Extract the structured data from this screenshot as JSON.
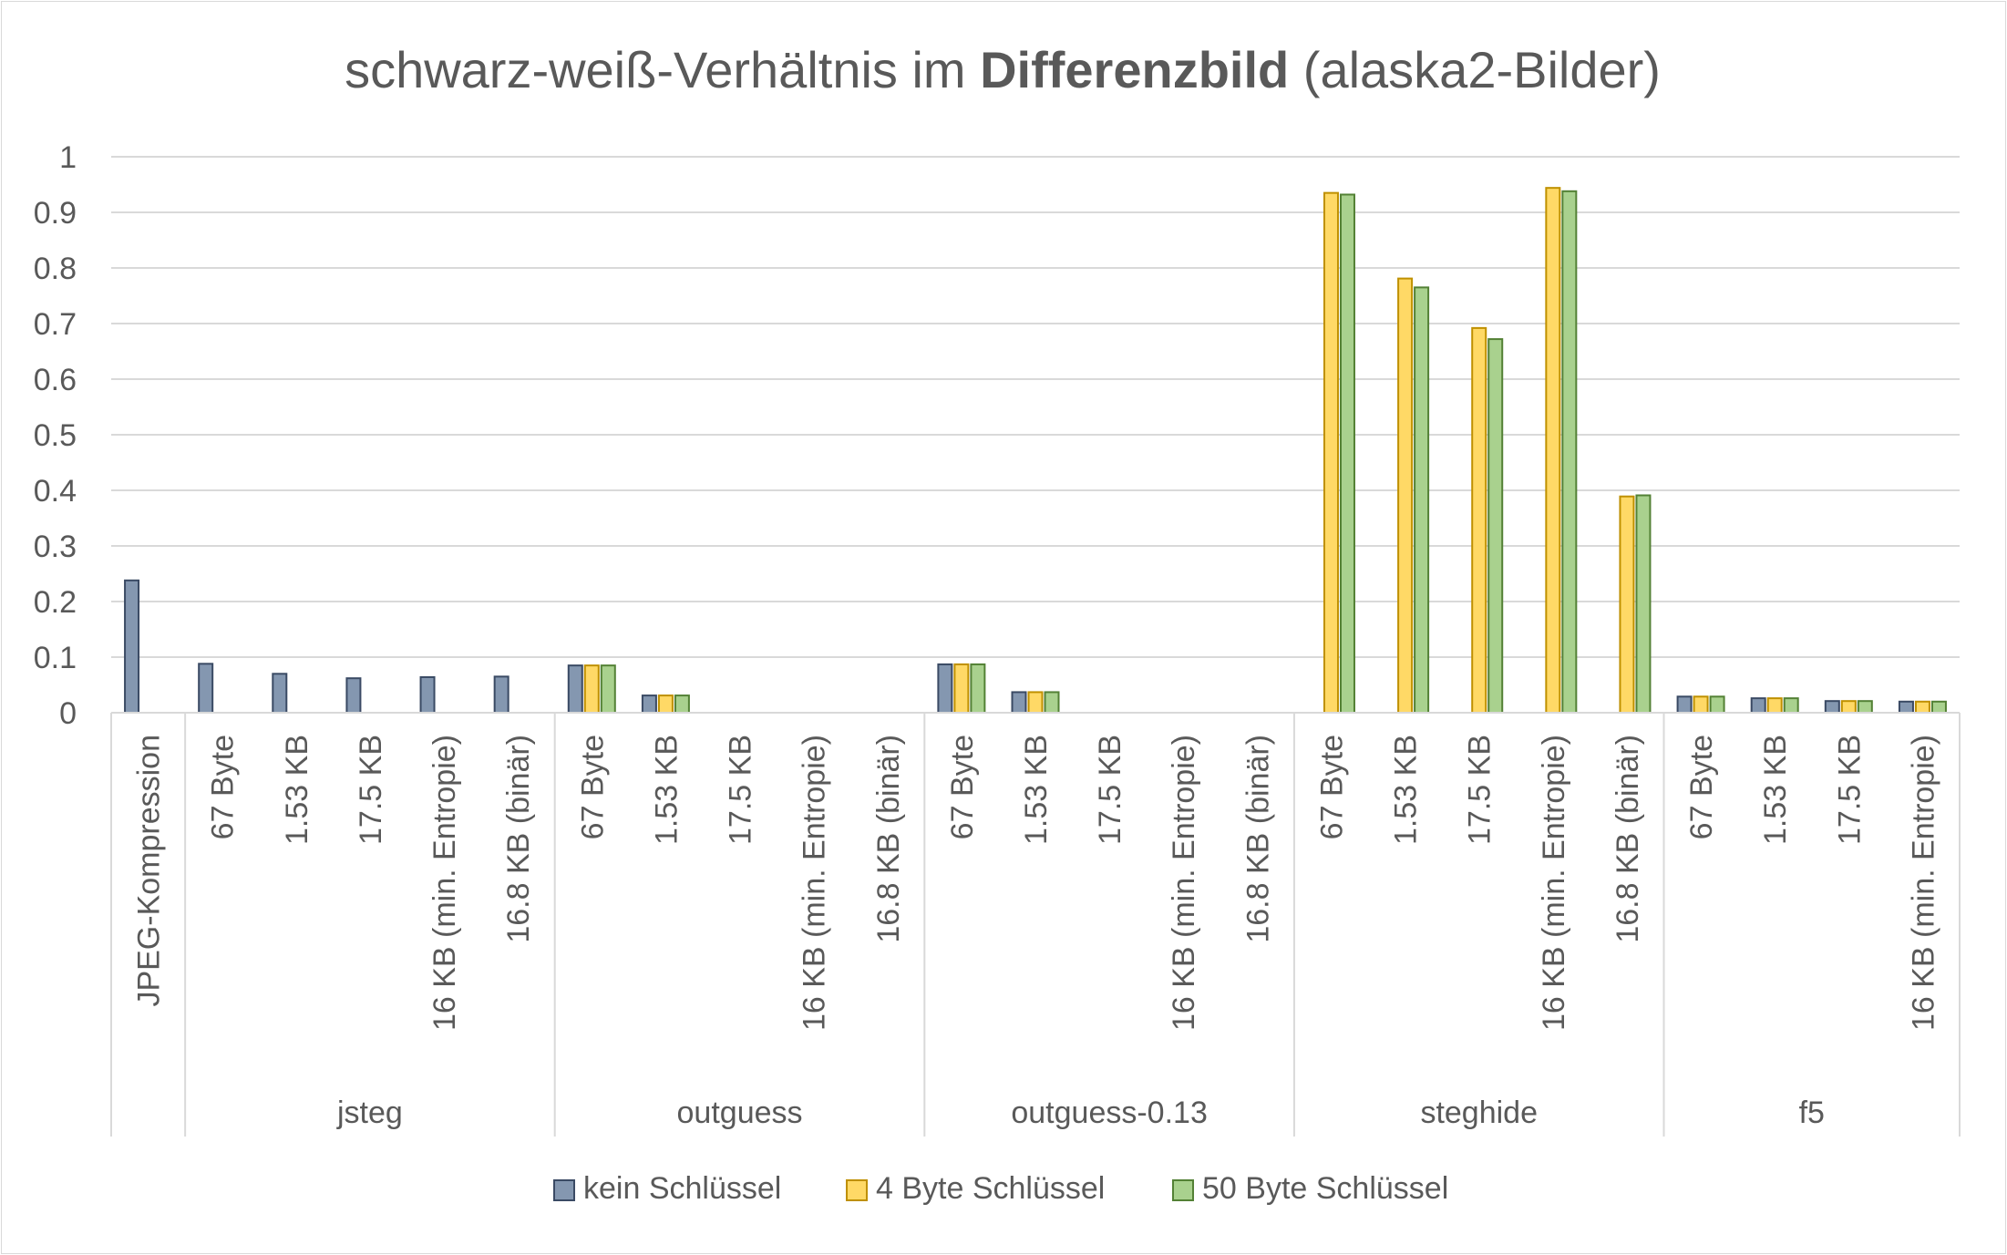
{
  "chart_data": {
    "type": "bar",
    "title": "schwarz-weiß-Verhältnis im Differenzbild (alaska2-Bilder)",
    "title_parts": {
      "prefix": "schwarz-weiß-Verhältnis im ",
      "bold": "Differenzbild",
      "suffix": " (alaska2-Bilder)"
    },
    "xlabel": "",
    "ylabel": "",
    "ylim": [
      0,
      1
    ],
    "yticks": [
      "0",
      "0.1",
      "0.2",
      "0.3",
      "0.4",
      "0.5",
      "0.6",
      "0.7",
      "0.8",
      "0.9",
      "1"
    ],
    "grid": true,
    "legend_position": "bottom",
    "groups": [
      {
        "label": "",
        "categories": [
          "JPEG-Kompression"
        ]
      },
      {
        "label": "jsteg",
        "categories": [
          "67 Byte",
          "1.53 KB",
          "17.5 KB",
          "16 KB (min. Entropie)",
          "16.8 KB (binär)"
        ]
      },
      {
        "label": "outguess",
        "categories": [
          "67 Byte",
          "1.53 KB",
          "17.5 KB",
          "16 KB (min. Entropie)",
          "16.8 KB (binär)"
        ]
      },
      {
        "label": "outguess-0.13",
        "categories": [
          "67 Byte",
          "1.53 KB",
          "17.5 KB",
          "16 KB (min. Entropie)",
          "16.8 KB (binär)"
        ]
      },
      {
        "label": "steghide",
        "categories": [
          "67 Byte",
          "1.53 KB",
          "17.5 KB",
          "16 KB (min. Entropie)",
          "16.8 KB (binär)"
        ]
      },
      {
        "label": "f5",
        "categories": [
          "67 Byte",
          "1.53 KB",
          "17.5 KB",
          "16 KB (min. Entropie)"
        ]
      }
    ],
    "series": [
      {
        "name": "kein Schlüssel",
        "color": "#8497b0",
        "border": "#3a4a64",
        "values": [
          0.238,
          0.088,
          0.07,
          0.062,
          0.064,
          0.065,
          0.085,
          0.031,
          null,
          null,
          null,
          0.087,
          0.037,
          null,
          null,
          null,
          null,
          null,
          null,
          null,
          null,
          0.029,
          0.026,
          0.021,
          0.02
        ]
      },
      {
        "name": "4 Byte Schlüssel",
        "color": "#ffd966",
        "border": "#bf9000",
        "values": [
          null,
          null,
          null,
          null,
          null,
          null,
          0.085,
          0.031,
          null,
          null,
          null,
          0.087,
          0.037,
          null,
          null,
          null,
          0.935,
          0.781,
          0.692,
          0.944,
          0.389,
          0.029,
          0.026,
          0.021,
          0.02
        ]
      },
      {
        "name": "50 Byte Schlüssel",
        "color": "#a9d18e",
        "border": "#538135",
        "values": [
          null,
          null,
          null,
          null,
          null,
          null,
          0.085,
          0.031,
          null,
          null,
          null,
          0.087,
          0.037,
          null,
          null,
          null,
          0.932,
          0.765,
          0.672,
          0.938,
          0.391,
          0.029,
          0.026,
          0.021,
          0.02
        ]
      }
    ]
  }
}
